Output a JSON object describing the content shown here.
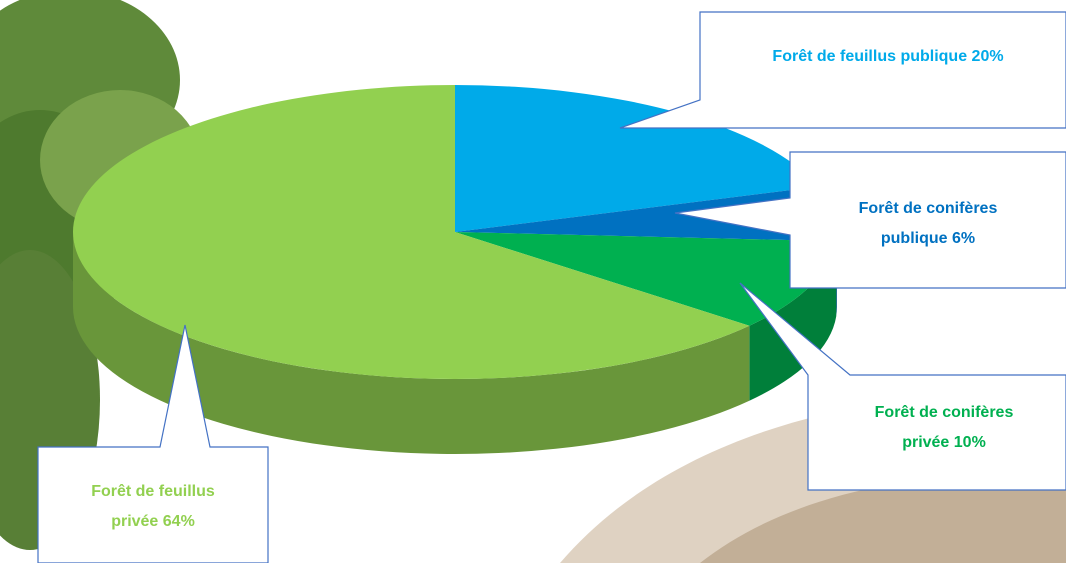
{
  "chart_data": {
    "type": "pie",
    "categories": [
      "Forêt de feuillus publique",
      "Forêt de conifères publique",
      "Forêt de conifères privée",
      "Forêt de feuillus privée"
    ],
    "values": [
      20,
      6,
      10,
      64
    ],
    "value_labels": [
      "20%",
      "6%",
      "10%",
      "64%"
    ],
    "colors": [
      "#00aae9",
      "#0071c1",
      "#00b050",
      "#92d050"
    ]
  }
}
